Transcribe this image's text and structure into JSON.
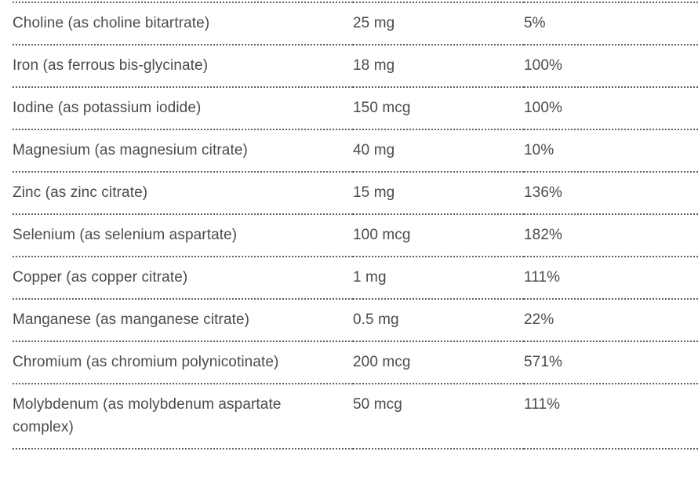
{
  "colors": {
    "background": "#ffffff",
    "text": "#494b4e",
    "divider": "#57626c"
  },
  "table": {
    "name": "supplement-facts",
    "columns": [
      "nutrient",
      "amount",
      "daily_value"
    ],
    "rows": [
      {
        "nutrient": "Choline (as choline bitartrate)",
        "amount": "25 mg",
        "daily_value": "5%"
      },
      {
        "nutrient": "Iron (as ferrous bis-glycinate)",
        "amount": "18 mg",
        "daily_value": "100%"
      },
      {
        "nutrient": "Iodine (as potassium iodide)",
        "amount": "150 mcg",
        "daily_value": "100%"
      },
      {
        "nutrient": "Magnesium (as magnesium citrate)",
        "amount": "40 mg",
        "daily_value": "10%"
      },
      {
        "nutrient": "Zinc (as zinc citrate)",
        "amount": "15 mg",
        "daily_value": "136%"
      },
      {
        "nutrient": "Selenium (as selenium aspartate)",
        "amount": "100 mcg",
        "daily_value": "182%"
      },
      {
        "nutrient": "Copper (as copper citrate)",
        "amount": "1 mg",
        "daily_value": "111%"
      },
      {
        "nutrient": "Manganese (as manganese citrate)",
        "amount": "0.5 mg",
        "daily_value": "22%"
      },
      {
        "nutrient": "Chromium (as chromium polynicotinate)",
        "amount": "200 mcg",
        "daily_value": "571%"
      },
      {
        "nutrient": "Molybdenum (as molybdenum aspartate complex)",
        "amount": "50 mcg",
        "daily_value": "111%"
      }
    ]
  }
}
